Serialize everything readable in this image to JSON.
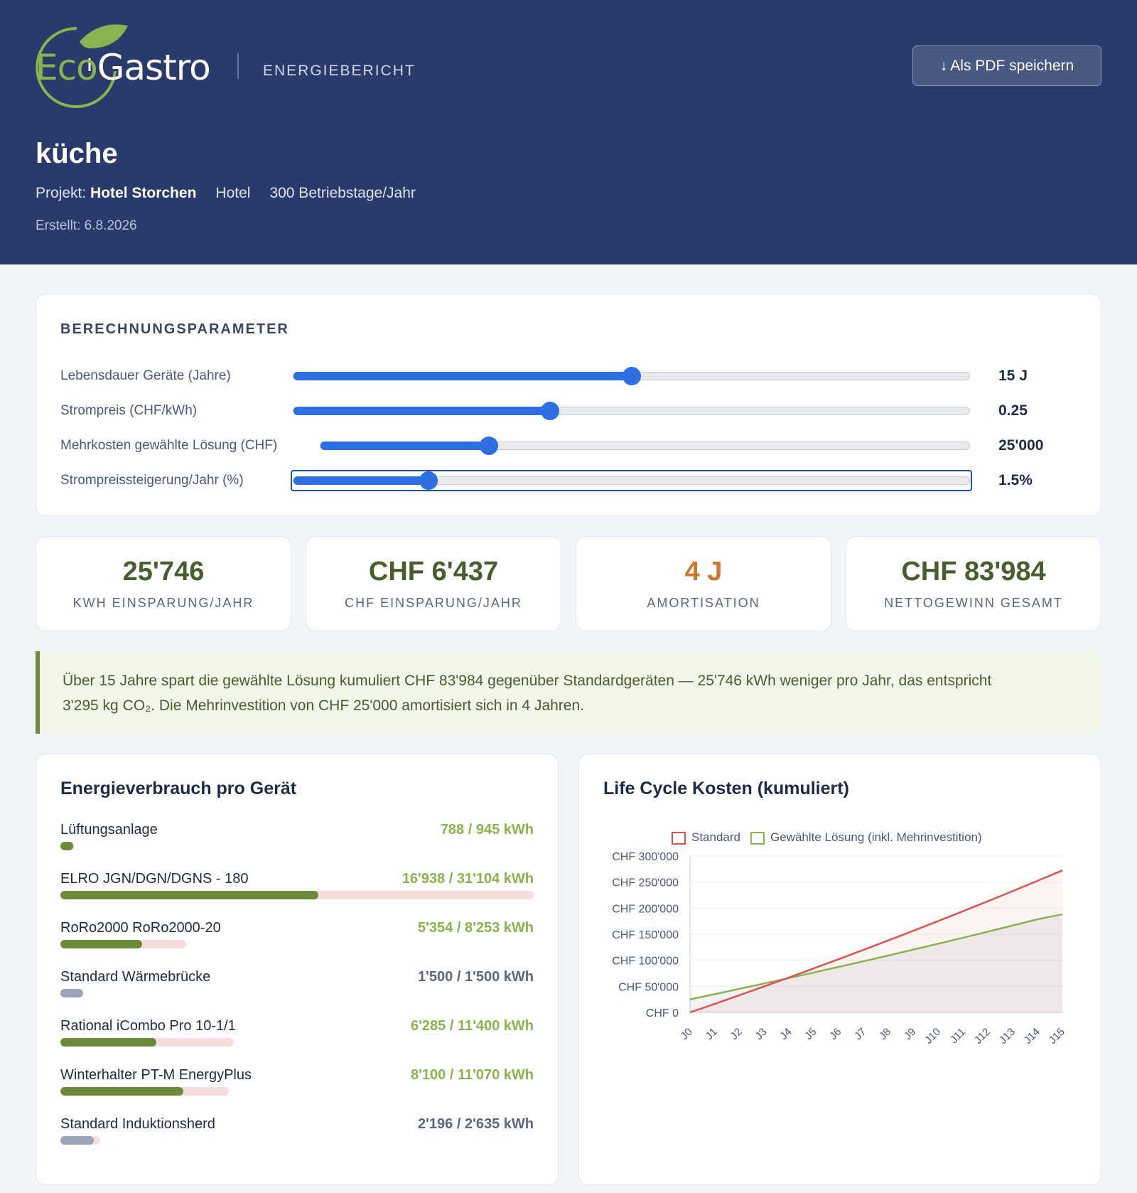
{
  "header": {
    "logo_eco": "Eco",
    "logo_gastro": "Gastro",
    "report_tag": "ENERGIEBERICHT",
    "pdf_button": "Als PDF speichern",
    "title": "küche",
    "project_label": "Projekt:",
    "project_name": "Hotel Storchen",
    "type": "Hotel",
    "days": "300 Betriebstage/Jahr",
    "created": "Erstellt: 6.8.2026",
    "colors": {
      "bg": "#2a3a6a",
      "brand_green": "#8ab24f"
    }
  },
  "params": {
    "heading": "BERECHNUNGSPARAMETER",
    "rows": [
      {
        "label": "Lebensdauer Geräte (Jahre)",
        "value": "15 J",
        "fraction": 0.5,
        "focused": false
      },
      {
        "label": "Strompreis (CHF/kWh)",
        "value": "0.25",
        "fraction": 0.38,
        "focused": false
      },
      {
        "label": "Mehrkosten gewählte Lösung (CHF)",
        "value": "25'000",
        "fraction": 0.26,
        "focused": false
      },
      {
        "label": "Strompreissteigerung/Jahr (%)",
        "value": "1.5%",
        "fraction": 0.2,
        "focused": true
      }
    ]
  },
  "kpis": [
    {
      "value": "25'746",
      "label": "KWH EINSPARUNG/JAHR",
      "accent": "#4a5d2e"
    },
    {
      "value": "CHF 6'437",
      "label": "CHF EINSPARUNG/JAHR",
      "accent": "#4a5d2e"
    },
    {
      "value": "4 J",
      "label": "AMORTISATION",
      "accent": "#c8792e"
    },
    {
      "value": "CHF 83'984",
      "label": "NETTOGEWINN GESAMT",
      "accent": "#4a5d2e"
    }
  ],
  "summary": {
    "line1": "Über 15 Jahre spart die gewählte Lösung kumuliert CHF 83'984 gegenüber Standardgeräten — 25'746 kWh weniger pro Jahr, das entspricht",
    "line2": "3'295 kg CO₂. Die Mehrinvestition von CHF 25'000 amortisiert sich in 4 Jahren."
  },
  "energy": {
    "title": "Energieverbrauch pro Gerät",
    "max_kwh": 31104,
    "devices": [
      {
        "name": "Lüftungsanlage",
        "value": "788 / 945 kWh",
        "used": 788,
        "standard": 945,
        "style": "green"
      },
      {
        "name": "ELRO JGN/DGN/DGNS - 180",
        "value": "16'938 / 31'104 kWh",
        "used": 16938,
        "standard": 31104,
        "style": "green"
      },
      {
        "name": "RoRo2000 RoRo2000-20",
        "value": "5'354 / 8'253 kWh",
        "used": 5354,
        "standard": 8253,
        "style": "green"
      },
      {
        "name": "Standard Wärmebrücke",
        "value": "1'500 / 1'500 kWh",
        "used": 1500,
        "standard": 1500,
        "style": "gray"
      },
      {
        "name": "Rational iCombo Pro 10-1/1",
        "value": "6'285 / 11'400 kWh",
        "used": 6285,
        "standard": 11400,
        "style": "green"
      },
      {
        "name": "Winterhalter PT-M EnergyPlus",
        "value": "8'100 / 11'070 kWh",
        "used": 8100,
        "standard": 11070,
        "style": "green"
      },
      {
        "name": "Standard Induktionsherd",
        "value": "2'196 / 2'635 kWh",
        "used": 2196,
        "standard": 2635,
        "style": "gray"
      }
    ]
  },
  "chart_data": {
    "type": "line",
    "title": "Life Cycle Kosten (kumuliert)",
    "categories": [
      "J0",
      "J1",
      "J2",
      "J3",
      "J4",
      "J5",
      "J6",
      "J7",
      "J8",
      "J9",
      "J10",
      "J11",
      "J12",
      "J13",
      "J14",
      "J15"
    ],
    "y_ticks": [
      "CHF 0",
      "CHF 50'000",
      "CHF 100'000",
      "CHF 150'000",
      "CHF 200'000",
      "CHF 250'000",
      "CHF 300'000"
    ],
    "ylim": [
      0,
      300000
    ],
    "legend_position": "top",
    "series": [
      {
        "name": "Standard",
        "color": "#d9534f",
        "fill": "rgba(217,83,79,0.07)",
        "values": [
          0,
          16500,
          33200,
          50100,
          67300,
          84700,
          102300,
          120200,
          138300,
          156700,
          175300,
          194200,
          213300,
          232700,
          252400,
          272300
        ]
      },
      {
        "name": "Gewählte Lösung (inkl. Mehrinvestition)",
        "color": "#8ab24f",
        "fill": "rgba(120,120,120,0.09)",
        "values": [
          25000,
          35100,
          45300,
          55600,
          66100,
          76700,
          87400,
          98300,
          109300,
          120500,
          131800,
          143300,
          154900,
          166700,
          178600,
          188300
        ]
      }
    ]
  }
}
